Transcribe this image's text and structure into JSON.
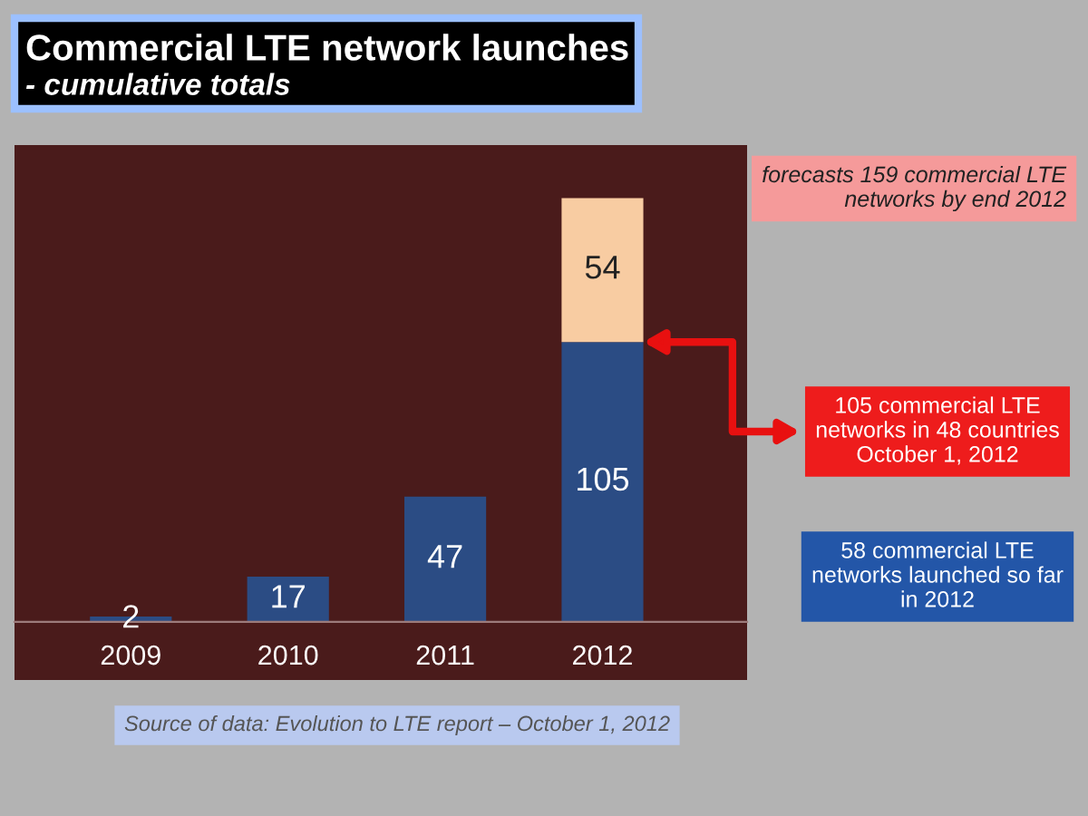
{
  "chart_data": {
    "type": "bar",
    "title": "Commercial LTE network launches",
    "subtitle": "- cumulative totals",
    "categories": [
      "2009",
      "2010",
      "2011",
      "2012"
    ],
    "stacked": true,
    "series": [
      {
        "color": "#2b4c84",
        "values": [
          2,
          17,
          47,
          105
        ]
      },
      {
        "color": "#f8cca2",
        "values": [
          null,
          null,
          null,
          54
        ]
      }
    ],
    "data_labels": true,
    "tick_labels": "x",
    "annotations": [
      "forecasts 159 commercial LTE\nnetworks by end 2012",
      "105 commercial LTE\nnetworks in 48 countries\nOctober 1, 2012",
      "58 commercial LTE\nnetworks launched so far\nin 2012",
      "Source of data: Evolution to LTE report – October 1, 2012"
    ]
  }
}
